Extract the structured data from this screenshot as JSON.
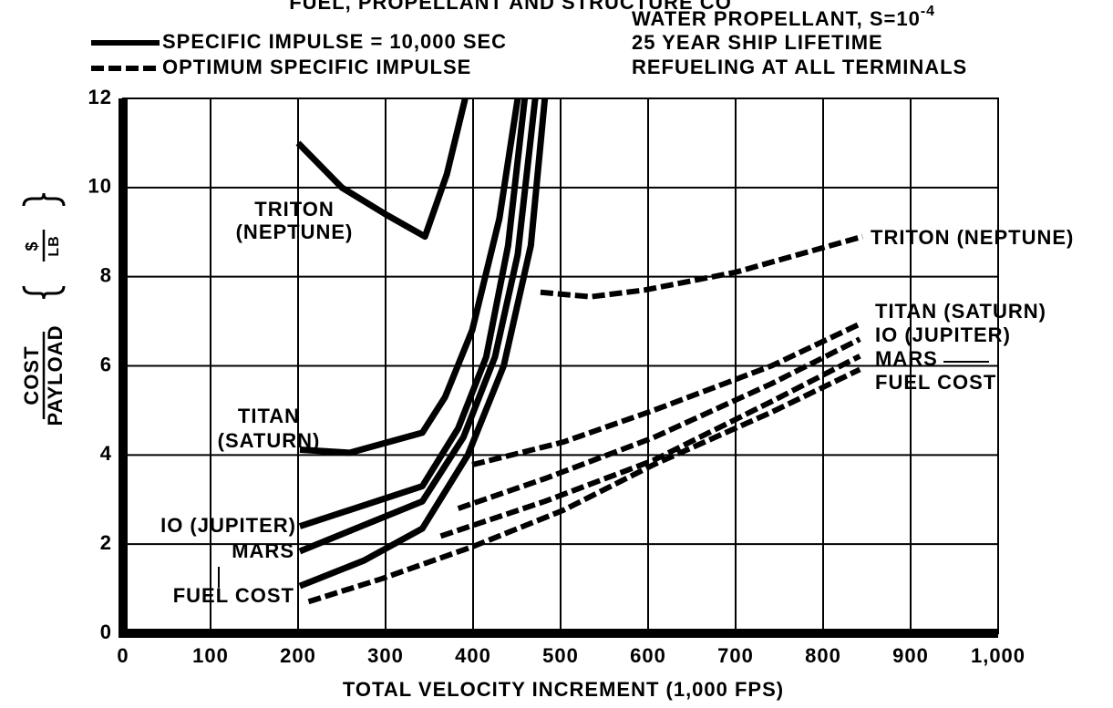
{
  "chart_data": {
    "type": "line",
    "title": "FUEL, PROPELLANT AND STRUCTURE CO",
    "xlabel": "TOTAL VELOCITY INCREMENT  (1,000 FPS)",
    "ylabel": {
      "numerator": "COST",
      "denominator": "PAYLOAD",
      "unit_numerator": "$",
      "unit_denominator": "LB"
    },
    "legend": [
      {
        "label": "SPECIFIC IMPULSE = 10,000 SEC",
        "style": "solid"
      },
      {
        "label": "OPTIMUM SPECIFIC IMPULSE",
        "style": "dashed"
      }
    ],
    "note_first": "WATER PROPELLANT, S=10",
    "note_sup": "-4",
    "notes": [
      "25 YEAR SHIP LIFETIME",
      "REFUELING AT ALL TERMINALS"
    ],
    "color": "#000000",
    "grid": true,
    "xlim": [
      0,
      1000
    ],
    "ylim": [
      0,
      12
    ],
    "xticks": [
      0,
      100,
      200,
      300,
      400,
      500,
      600,
      700,
      800,
      900,
      {
        "value": 1000,
        "label": "1,000"
      }
    ],
    "yticks": [
      0,
      2,
      4,
      6,
      8,
      10,
      12
    ],
    "series": [
      {
        "label": [
          "TRITON",
          "(NEPTUNE)"
        ],
        "style": "solid",
        "x": [
          200,
          250,
          300,
          345,
          370,
          391
        ],
        "values": [
          11.0,
          10.0,
          9.4,
          8.9,
          10.3,
          12
        ]
      },
      {
        "label": [
          "TITAN",
          "(SATURN)"
        ],
        "style": "solid",
        "x": [
          202,
          259,
          342,
          368,
          399,
          430,
          451
        ],
        "values": [
          4.12,
          4.05,
          4.5,
          5.3,
          6.8,
          9.3,
          12
        ]
      },
      {
        "label": [
          "IO (JUPITER)"
        ],
        "style": "solid",
        "x": [
          202,
          342,
          383,
          415,
          440,
          459
        ],
        "values": [
          2.4,
          3.3,
          4.6,
          6.2,
          8.7,
          12
        ]
      },
      {
        "label": [
          "MARS"
        ],
        "style": "solid",
        "x": [
          202,
          342,
          389,
          425,
          451,
          471
        ],
        "values": [
          1.84,
          2.96,
          4.4,
          6.2,
          8.5,
          12
        ]
      },
      {
        "label": [
          "FUEL COST"
        ],
        "style": "solid",
        "x": [
          202,
          275,
          342,
          394,
          435,
          466,
          482
        ],
        "values": [
          1.06,
          1.63,
          2.35,
          4.0,
          6.0,
          8.7,
          12
        ]
      },
      {
        "label": [
          "TRITON (NEPTUNE)"
        ],
        "style": "dashed",
        "x": [
          477,
          534,
          596,
          700,
          845
        ],
        "values": [
          7.65,
          7.55,
          7.7,
          8.1,
          8.9
        ]
      },
      {
        "label": [
          "TITAN (SATURN)"
        ],
        "style": "dashed",
        "x": [
          399,
          503,
          606,
          741,
          842
        ],
        "values": [
          3.78,
          4.29,
          5.0,
          6.0,
          6.94
        ]
      },
      {
        "label": [
          "IO (JUPITER)"
        ],
        "style": "dashed",
        "x": [
          383,
          482,
          606,
          741,
          842
        ],
        "values": [
          2.8,
          3.47,
          4.39,
          5.6,
          6.6
        ]
      },
      {
        "label": [
          "MARS"
        ],
        "style": "dashed",
        "x": [
          363,
          482,
          606,
          741,
          842
        ],
        "values": [
          2.18,
          2.96,
          3.88,
          5.2,
          6.22
        ]
      },
      {
        "label": [
          "FUEL COST"
        ],
        "style": "dashed",
        "x": [
          212,
          295,
          399,
          503,
          606,
          741,
          842
        ],
        "values": [
          0.71,
          1.22,
          1.94,
          2.76,
          3.78,
          4.96,
          5.92
        ]
      }
    ]
  }
}
